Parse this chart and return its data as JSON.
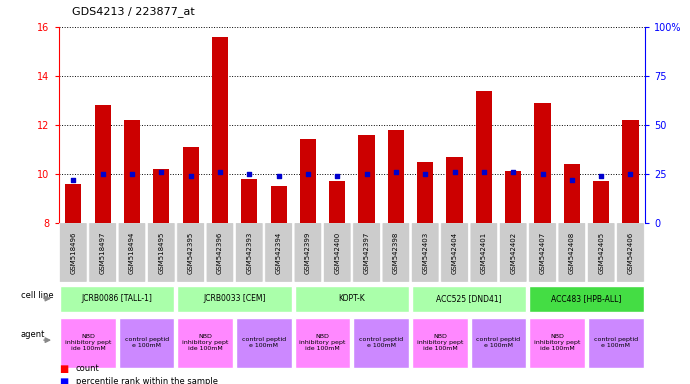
{
  "title": "GDS4213 / 223877_at",
  "samples": [
    "GSM518496",
    "GSM518497",
    "GSM518494",
    "GSM518495",
    "GSM542395",
    "GSM542396",
    "GSM542393",
    "GSM542394",
    "GSM542399",
    "GSM542400",
    "GSM542397",
    "GSM542398",
    "GSM542403",
    "GSM542404",
    "GSM542401",
    "GSM542402",
    "GSM542407",
    "GSM542408",
    "GSM542405",
    "GSM542406"
  ],
  "count_values": [
    9.6,
    12.8,
    12.2,
    10.2,
    11.1,
    15.6,
    9.8,
    9.5,
    11.4,
    9.7,
    11.6,
    11.8,
    10.5,
    10.7,
    13.4,
    10.1,
    12.9,
    10.4,
    9.7,
    12.2
  ],
  "percentile_values": [
    22,
    25,
    25,
    26,
    24,
    26,
    25,
    24,
    25,
    24,
    25,
    26,
    25,
    26,
    26,
    26,
    25,
    22,
    24,
    25
  ],
  "cell_lines": [
    {
      "label": "JCRB0086 [TALL-1]",
      "start": 0,
      "end": 4,
      "color": "#aaffaa"
    },
    {
      "label": "JCRB0033 [CEM]",
      "start": 4,
      "end": 8,
      "color": "#aaffaa"
    },
    {
      "label": "KOPT-K",
      "start": 8,
      "end": 12,
      "color": "#aaffaa"
    },
    {
      "label": "ACC525 [DND41]",
      "start": 12,
      "end": 16,
      "color": "#aaffaa"
    },
    {
      "label": "ACC483 [HPB-ALL]",
      "start": 16,
      "end": 20,
      "color": "#44dd44"
    }
  ],
  "agents": [
    {
      "label": "NBD\ninhibitory pept\nide 100mM",
      "start": 0,
      "end": 2,
      "color": "#ff88ff"
    },
    {
      "label": "control peptid\ne 100mM",
      "start": 2,
      "end": 4,
      "color": "#cc88ff"
    },
    {
      "label": "NBD\ninhibitory pept\nide 100mM",
      "start": 4,
      "end": 6,
      "color": "#ff88ff"
    },
    {
      "label": "control peptid\ne 100mM",
      "start": 6,
      "end": 8,
      "color": "#cc88ff"
    },
    {
      "label": "NBD\ninhibitory pept\nide 100mM",
      "start": 8,
      "end": 10,
      "color": "#ff88ff"
    },
    {
      "label": "control peptid\ne 100mM",
      "start": 10,
      "end": 12,
      "color": "#cc88ff"
    },
    {
      "label": "NBD\ninhibitory pept\nide 100mM",
      "start": 12,
      "end": 14,
      "color": "#ff88ff"
    },
    {
      "label": "control peptid\ne 100mM",
      "start": 14,
      "end": 16,
      "color": "#cc88ff"
    },
    {
      "label": "NBD\ninhibitory pept\nide 100mM",
      "start": 16,
      "end": 18,
      "color": "#ff88ff"
    },
    {
      "label": "control peptid\ne 100mM",
      "start": 18,
      "end": 20,
      "color": "#cc88ff"
    }
  ],
  "ylim_left": [
    8,
    16
  ],
  "ylim_right": [
    0,
    100
  ],
  "yticks_left": [
    8,
    10,
    12,
    14,
    16
  ],
  "yticks_right": [
    0,
    25,
    50,
    75,
    100
  ],
  "bar_color": "#cc0000",
  "percentile_color": "#0000cc",
  "bar_width": 0.55,
  "background_color": "#ffffff",
  "sample_label_color": "#dddddd",
  "cell_line_label": "cell line",
  "agent_label": "agent",
  "legend_count": "count",
  "legend_pct": "percentile rank within the sample"
}
